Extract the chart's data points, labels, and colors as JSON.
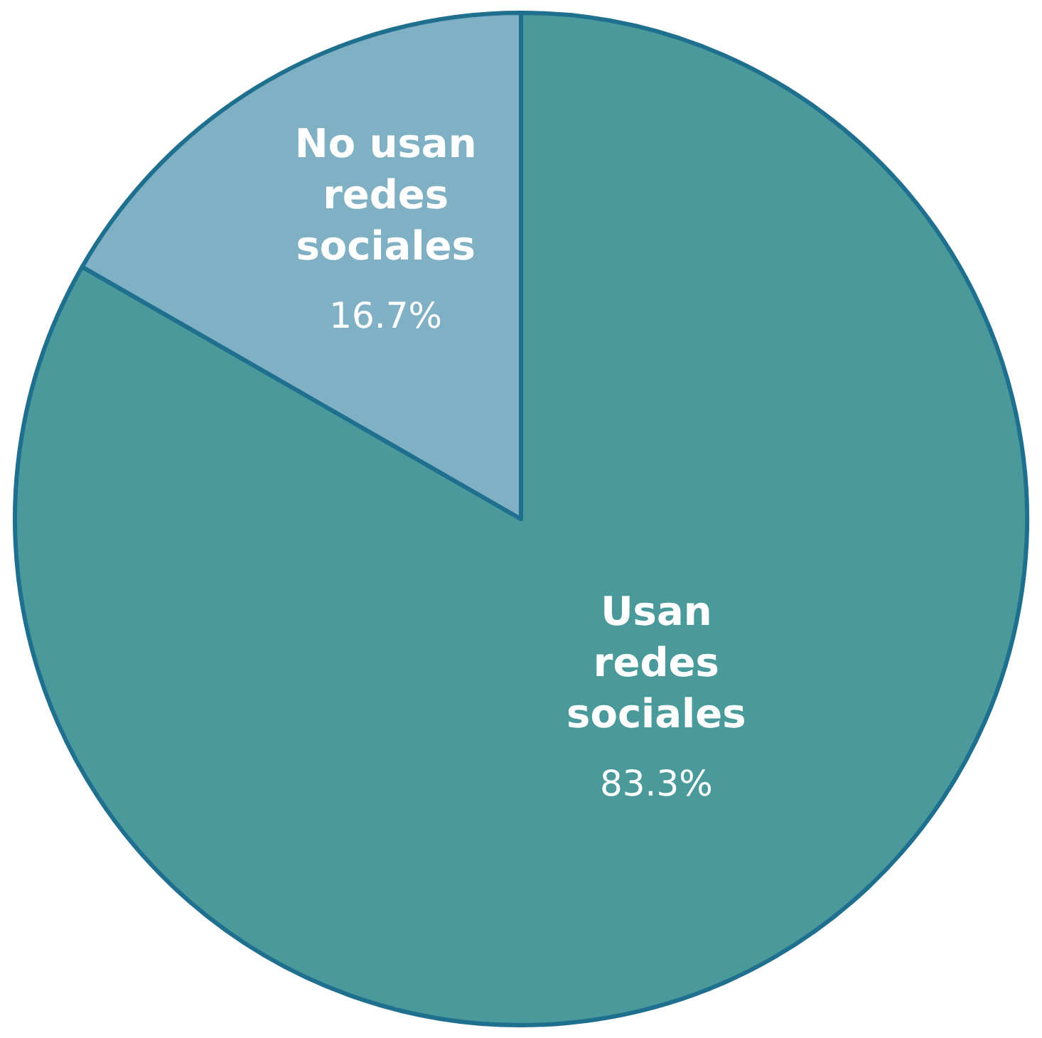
{
  "chart_data": {
    "type": "pie",
    "categories": [
      "Usan redes sociales",
      "No usan redes sociales"
    ],
    "values": [
      83.3,
      16.7
    ],
    "colors": [
      "#4a9a9c",
      "#7fb0c4"
    ],
    "value_labels": [
      "83.3%",
      "16.7%"
    ],
    "legend": false
  }
}
